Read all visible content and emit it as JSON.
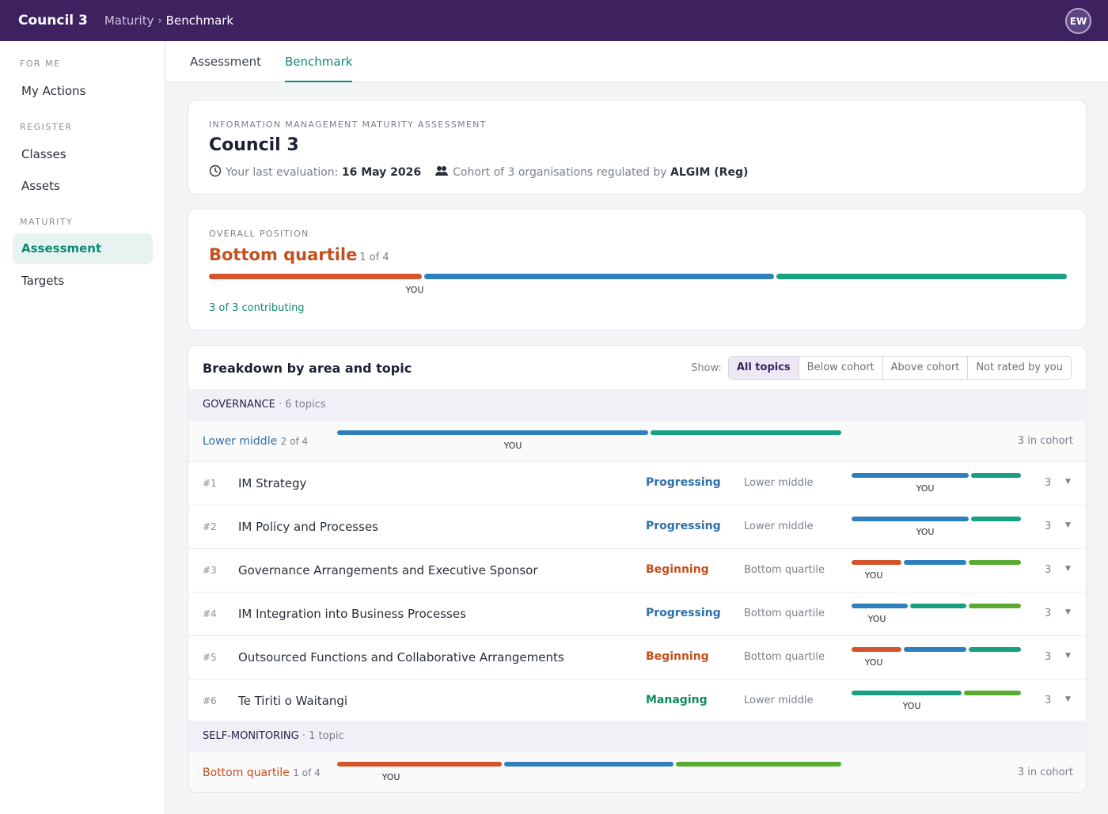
{
  "app": {
    "brand": "Council 3",
    "breadcrumb": [
      "Maturity",
      "Benchmark"
    ],
    "avatar": "EW"
  },
  "sidebar": {
    "sections": [
      {
        "label": "FOR ME",
        "items": [
          "My Actions"
        ]
      },
      {
        "label": "REGISTER",
        "items": [
          "Classes",
          "Assets"
        ]
      },
      {
        "label": "MATURITY",
        "items": [
          "Assessment",
          "Targets"
        ]
      }
    ],
    "active": "Assessment"
  },
  "tabs": [
    {
      "label": "Assessment",
      "active": false
    },
    {
      "label": "Benchmark",
      "active": true
    }
  ],
  "summary": {
    "eyebrow": "INFORMATION MANAGEMENT MATURITY ASSESSMENT",
    "title": "Council 3",
    "last_eval_label": "Your last evaluation:",
    "last_eval_date": "16 May 2026",
    "cohort_label": "Cohort of 3 organisations regulated by",
    "regulator": "ALGIM (Reg)"
  },
  "overall": {
    "eyebrow": "OVERALL POSITION",
    "quartile": "Bottom quartile",
    "quartile_sub": "1 of 4",
    "you_label": "YOU",
    "you_position": 0.241,
    "contributing": "3 of 3 contributing"
  },
  "breakdown": {
    "title": "Breakdown by area and topic",
    "show_label": "Show:",
    "filters": [
      {
        "label": "All topics",
        "active": true
      },
      {
        "label": "Below cohort",
        "active": false
      },
      {
        "label": "Above cohort",
        "active": false
      },
      {
        "label": "Not rated by you",
        "active": false
      }
    ],
    "areas": [
      {
        "name": "GOVERNANCE",
        "count": "· 6 topics",
        "level": "Lower middle",
        "level_sub": "2 of 4",
        "cohort": "3 in cohort",
        "you_position": 0.348,
        "topics": [
          {
            "num": "#1",
            "name": "IM Strategy",
            "status": "Progressing",
            "position": "Lower middle",
            "n": "3",
            "you_position": 0.432
          },
          {
            "num": "#2",
            "name": "IM Policy and Processes",
            "status": "Progressing",
            "position": "Lower middle",
            "n": "3",
            "you_position": 0.432
          },
          {
            "num": "#3",
            "name": "Governance Arrangements and Executive Sponsor",
            "status": "Beginning",
            "position": "Bottom quartile",
            "n": "3",
            "you_position": 0.133
          },
          {
            "num": "#4",
            "name": "IM Integration into Business Processes",
            "status": "Progressing",
            "position": "Bottom quartile",
            "n": "3",
            "you_position": 0.152
          },
          {
            "num": "#5",
            "name": "Outsourced Functions and Collaborative Arrangements",
            "status": "Beginning",
            "position": "Bottom quartile",
            "n": "3",
            "you_position": 0.133
          },
          {
            "num": "#6",
            "name": "Te Tiriti o Waitangi",
            "status": "Managing",
            "position": "Lower middle",
            "n": "3",
            "you_position": 0.352
          }
        ]
      },
      {
        "name": "SELF-MONITORING",
        "count": "· 1 topic",
        "level": "Bottom quartile",
        "level_sub": "1 of 4",
        "cohort": "3 in cohort",
        "you_position": 0.107,
        "topics": []
      }
    ]
  },
  "colors": {
    "beginning": "#d4552b",
    "progressing": "#2f7fbf",
    "managing": "#17a082",
    "advanced": "#5aab32",
    "quartile_bottom": "#c4501f",
    "quartile_lower": "#2f6fa8"
  }
}
